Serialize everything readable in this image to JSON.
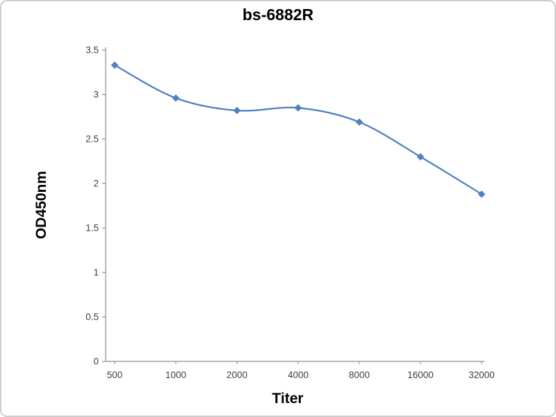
{
  "chart_data": {
    "type": "line",
    "title": "bs-6882R",
    "xlabel": "Titer",
    "ylabel": "OD450nm",
    "categories": [
      "500",
      "1000",
      "2000",
      "4000",
      "8000",
      "16000",
      "32000"
    ],
    "series": [
      {
        "name": "bs-6882R",
        "values": [
          3.33,
          2.96,
          2.82,
          2.85,
          2.69,
          2.3,
          1.88
        ]
      }
    ],
    "ylim": [
      0,
      3.5
    ],
    "yticks": [
      0,
      0.5,
      1,
      1.5,
      2,
      2.5,
      3,
      3.5
    ],
    "line_color": "#4f81bd",
    "axis_color": "#8c8c8c",
    "marker": "diamond",
    "grid": "off",
    "legend": "none",
    "smooth": true
  }
}
